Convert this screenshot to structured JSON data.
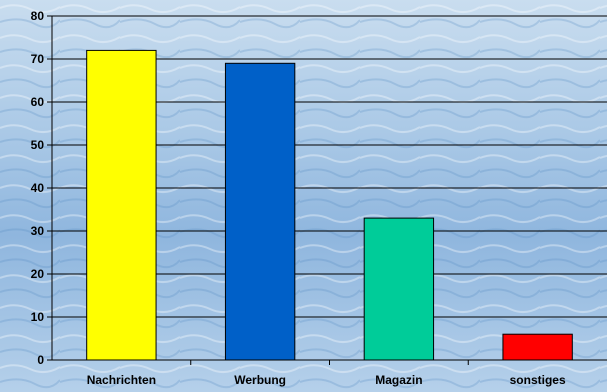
{
  "chart_data": {
    "type": "bar",
    "categories": [
      "Nachrichten",
      "Werbung",
      "Magazin",
      "sonstiges"
    ],
    "values": [
      72,
      69,
      33,
      6
    ],
    "colors": [
      "#ffff00",
      "#0060c8",
      "#00cc99",
      "#ff0000"
    ],
    "ylim": [
      0,
      80
    ],
    "yticks": [
      "0",
      "10",
      "20",
      "30",
      "40",
      "50",
      "60",
      "70",
      "80"
    ],
    "grid": true,
    "title": "",
    "xlabel": "",
    "ylabel": ""
  }
}
